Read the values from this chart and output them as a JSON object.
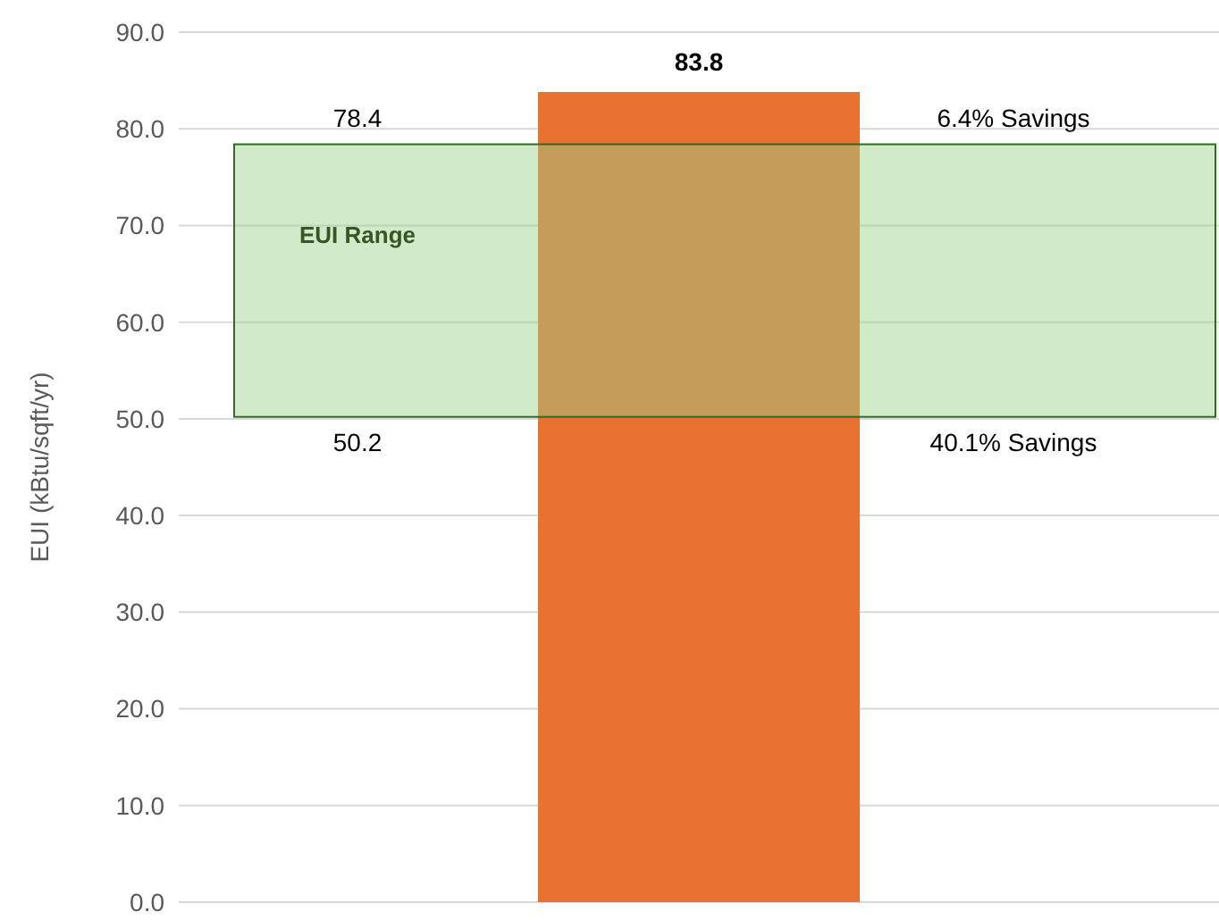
{
  "chart_data": {
    "type": "bar",
    "ylabel": "EUI (kBtu/sqft/yr)",
    "categories": [
      null
    ],
    "values": [
      83.8
    ],
    "color": "#e97132",
    "data_labels": true,
    "ylim": [
      0,
      90
    ],
    "yticks": [
      {
        "value": 0,
        "label": "0.0"
      },
      {
        "value": 10,
        "label": "10.0"
      },
      {
        "value": 20,
        "label": "20.0"
      },
      {
        "value": 30,
        "label": "30.0"
      },
      {
        "value": 40,
        "label": "40.0"
      },
      {
        "value": 50,
        "label": "50.0"
      },
      {
        "value": 60,
        "label": "60.0"
      },
      {
        "value": 70,
        "label": "70.0"
      },
      {
        "value": 80,
        "label": "80.0"
      },
      {
        "value": 90,
        "label": "90.0"
      }
    ],
    "grid": "y",
    "bands": [
      {
        "axis": "y",
        "from": 50.2,
        "to": 78.4,
        "label": "EUI Range",
        "color": "#9ad08a"
      }
    ],
    "annotations": [
      {
        "text": "78.4",
        "y": 78.4
      },
      {
        "text": "6.4% Savings",
        "y": 78.4
      },
      {
        "text": "50.2",
        "y": 50.2
      },
      {
        "text": "40.1% Savings",
        "y": 50.2
      }
    ]
  }
}
